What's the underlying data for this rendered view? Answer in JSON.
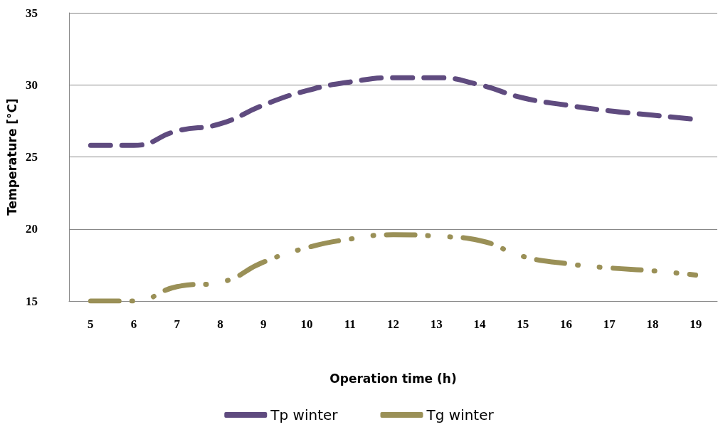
{
  "chart_data": {
    "type": "line",
    "xlabel": "Operation time (h)",
    "ylabel": "Temperature [°C]",
    "categories": [
      "5",
      "6",
      "7",
      "8",
      "9",
      "10",
      "11",
      "12",
      "13",
      "14",
      "15",
      "16",
      "17",
      "18",
      "19"
    ],
    "series": [
      {
        "name": "Tp winter",
        "color": "#5f4b7f",
        "line_style": "dashed",
        "values": [
          25.8,
          25.8,
          26.8,
          27.3,
          28.6,
          29.6,
          30.2,
          30.5,
          30.5,
          30.0,
          29.1,
          28.6,
          28.2,
          27.9,
          27.6
        ]
      },
      {
        "name": "Tg winter",
        "color": "#9a9057",
        "line_style": "dotted",
        "values": [
          15.0,
          15.0,
          16.0,
          16.3,
          17.7,
          18.7,
          19.3,
          19.6,
          19.5,
          19.2,
          18.1,
          17.6,
          17.3,
          17.1,
          16.8
        ]
      }
    ],
    "ylim": [
      15,
      35
    ],
    "yticks": [
      15,
      20,
      25,
      30,
      35
    ],
    "grid": "y",
    "legend": "bottom",
    "marker": "none"
  }
}
